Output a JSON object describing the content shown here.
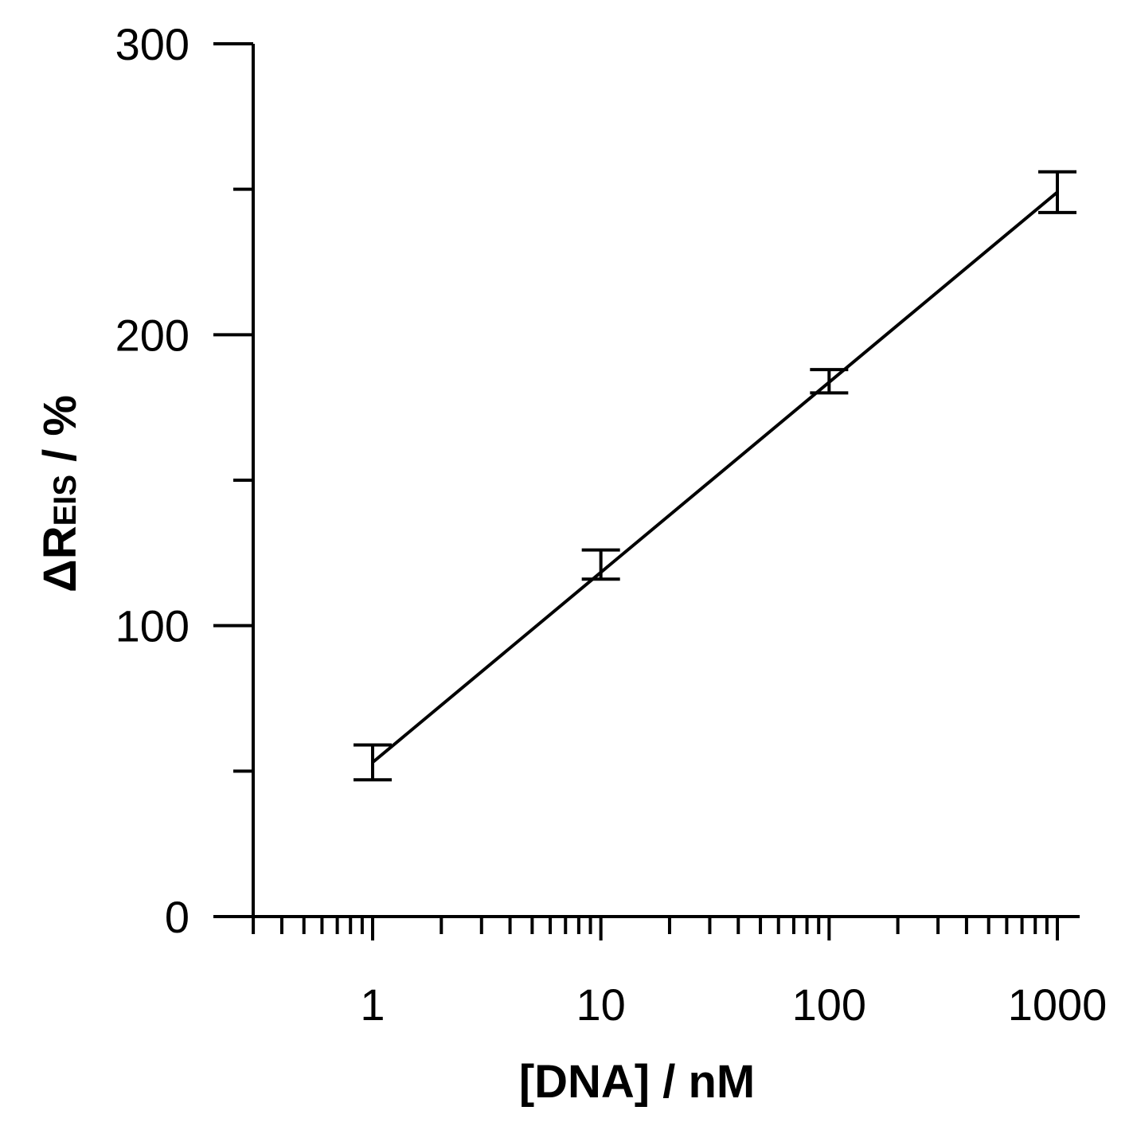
{
  "chart_data": {
    "type": "line",
    "x_scale": "log",
    "xlabel": "[DNA] / nM",
    "ylabel_main": "ΔR",
    "ylabel_sub": "EIS",
    "ylabel_unit": " / %",
    "xlim": [
      0.3,
      1000
    ],
    "ylim": [
      0,
      300
    ],
    "x_ticks": [
      1,
      10,
      100,
      1000
    ],
    "x_tick_labels": [
      "1",
      "10",
      "100",
      "1000"
    ],
    "y_ticks": [
      0,
      100,
      200,
      300
    ],
    "y_tick_labels": [
      "0",
      "100",
      "200",
      "300"
    ],
    "y_minor_ticks": [
      50,
      150,
      250
    ],
    "series": [
      {
        "x": [
          1,
          10,
          100,
          1000
        ],
        "y": [
          53,
          121,
          184,
          249
        ],
        "error": [
          6,
          5,
          4,
          7
        ]
      }
    ],
    "fit_line": {
      "x": [
        1,
        1000
      ],
      "y": [
        53,
        249
      ]
    },
    "grid": false,
    "legend": "none",
    "color": "#000000"
  }
}
